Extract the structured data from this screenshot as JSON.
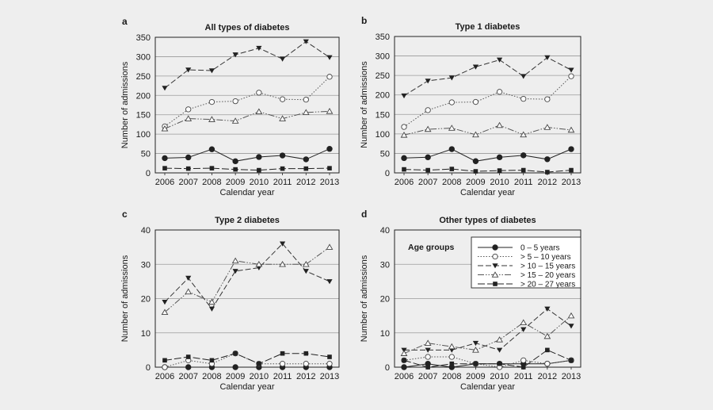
{
  "legend": {
    "title": "Age groups",
    "entries": [
      "0 – 5 years",
      "> 5 – 10 years",
      "> 10 – 15 years",
      "> 15 – 20 years",
      "> 20 – 27 years"
    ]
  },
  "chart_data": [
    {
      "type": "line",
      "panel": "a",
      "title": "All types of diabetes",
      "xlabel": "Calendar year",
      "ylabel": "Number of admissions",
      "ylim": [
        0,
        350
      ],
      "yticks": [
        0,
        50,
        100,
        150,
        200,
        250,
        300,
        350
      ],
      "grid": true,
      "categories": [
        "2006",
        "2007",
        "2008",
        "2009",
        "2010",
        "2011",
        "2012",
        "2013"
      ],
      "series": [
        {
          "name": "0 – 5 years",
          "values": [
            38,
            40,
            61,
            30,
            41,
            45,
            35,
            62
          ]
        },
        {
          "name": "> 5 – 10 years",
          "values": [
            120,
            164,
            183,
            185,
            207,
            190,
            189,
            248
          ]
        },
        {
          "name": "> 10 – 15 years",
          "values": [
            219,
            266,
            264,
            305,
            322,
            294,
            339,
            298
          ]
        },
        {
          "name": "> 15 – 20 years",
          "values": [
            114,
            140,
            138,
            134,
            158,
            140,
            156,
            159
          ]
        },
        {
          "name": "> 20 – 27 years",
          "values": [
            12,
            11,
            12,
            9,
            7,
            11,
            11,
            12
          ]
        }
      ]
    },
    {
      "type": "line",
      "panel": "b",
      "title": "Type 1 diabetes",
      "xlabel": "Calendar year",
      "ylabel": "Number of admissions",
      "ylim": [
        0,
        350
      ],
      "yticks": [
        0,
        50,
        100,
        150,
        200,
        250,
        300,
        350
      ],
      "grid": true,
      "categories": [
        "2006",
        "2007",
        "2008",
        "2009",
        "2010",
        "2011",
        "2012",
        "2013"
      ],
      "series": [
        {
          "name": "0 – 5 years",
          "values": [
            38,
            40,
            61,
            30,
            40,
            45,
            35,
            61
          ]
        },
        {
          "name": "> 5 – 10 years",
          "values": [
            118,
            161,
            181,
            182,
            208,
            190,
            189,
            248
          ]
        },
        {
          "name": "> 10 – 15 years",
          "values": [
            198,
            236,
            244,
            272,
            290,
            248,
            296,
            264
          ]
        },
        {
          "name": "> 15 – 20 years",
          "values": [
            97,
            112,
            115,
            98,
            122,
            98,
            117,
            110
          ]
        },
        {
          "name": "> 20 – 27 years",
          "values": [
            9,
            7,
            10,
            4,
            6,
            7,
            2,
            7
          ]
        }
      ]
    },
    {
      "type": "line",
      "panel": "c",
      "title": "Type 2 diabetes",
      "xlabel": "Calendar year",
      "ylabel": "Number of admissions",
      "ylim": [
        0,
        40
      ],
      "yticks": [
        0,
        10,
        20,
        30,
        40
      ],
      "grid": true,
      "categories": [
        "2006",
        "2007",
        "2008",
        "2009",
        "2010",
        "2011",
        "2012",
        "2013"
      ],
      "series": [
        {
          "name": "0 – 5 years",
          "values": [
            0,
            0,
            0,
            0,
            0,
            0,
            0,
            0
          ]
        },
        {
          "name": "> 5 – 10 years",
          "values": [
            0,
            2,
            1,
            4,
            1,
            1,
            1,
            1
          ]
        },
        {
          "name": "> 10 – 15 years",
          "values": [
            19,
            26,
            17,
            28,
            29,
            36,
            28,
            25
          ]
        },
        {
          "name": "> 15 – 20 years",
          "values": [
            16,
            22,
            19,
            31,
            30,
            30,
            30,
            35
          ]
        },
        {
          "name": "> 20 – 27 years",
          "values": [
            2,
            3,
            2,
            4,
            1,
            4,
            4,
            3
          ]
        }
      ]
    },
    {
      "type": "line",
      "panel": "d",
      "title": "Other types of diabetes",
      "xlabel": "Calendar year",
      "ylabel": "Number of admissions",
      "ylim": [
        0,
        40
      ],
      "yticks": [
        0,
        10,
        20,
        30,
        40
      ],
      "grid": true,
      "legend_position": "top-right",
      "categories": [
        "2006",
        "2007",
        "2008",
        "2009",
        "2010",
        "2011",
        "2012",
        "2013"
      ],
      "series": [
        {
          "name": "0 – 5 years",
          "values": [
            0,
            1,
            0,
            1,
            1,
            1,
            1,
            2
          ]
        },
        {
          "name": "> 5 – 10 years",
          "values": [
            2,
            3,
            3,
            1,
            0,
            2,
            1,
            2
          ]
        },
        {
          "name": "> 10 – 15 years",
          "values": [
            5,
            5,
            5,
            7,
            5,
            11,
            17,
            12
          ]
        },
        {
          "name": "> 15 – 20 years",
          "values": [
            4,
            7,
            6,
            5,
            8,
            13,
            9,
            15
          ]
        },
        {
          "name": "> 20 – 27 years",
          "values": [
            2,
            0,
            1,
            1,
            1,
            0,
            5,
            2
          ]
        }
      ]
    }
  ]
}
